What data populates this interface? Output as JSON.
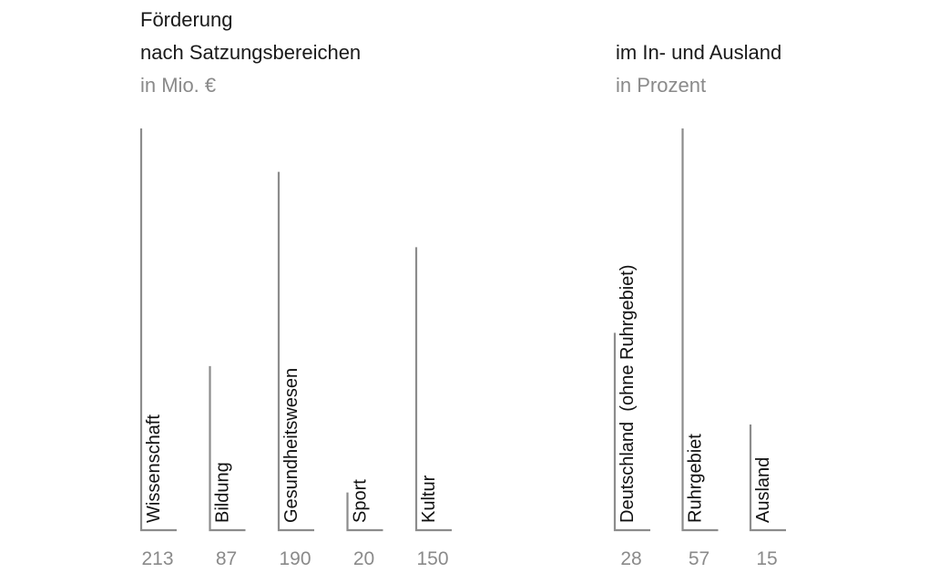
{
  "chart_data": [
    {
      "type": "bar",
      "title": "Förderung",
      "subtitle": "nach Satzungsbereichen",
      "unit": "in Mio. €",
      "categories": [
        "Wissenschaft",
        "Bildung",
        "Gesundheitswesen",
        "Sport",
        "Kultur"
      ],
      "values": [
        213,
        87,
        190,
        20,
        150
      ],
      "ylim": [
        0,
        213
      ]
    },
    {
      "type": "bar",
      "title": "im In- und Ausland",
      "unit": "in Prozent",
      "categories": [
        "Deutschland  (ohne Ruhrgebiet)",
        "Ruhrgebiet",
        "Ausland"
      ],
      "values": [
        28,
        57,
        15
      ],
      "ylim": [
        0,
        57
      ]
    }
  ],
  "colors": {
    "bar": "#8c8c8c",
    "label": "#111111",
    "value": "#8a8a8a"
  }
}
